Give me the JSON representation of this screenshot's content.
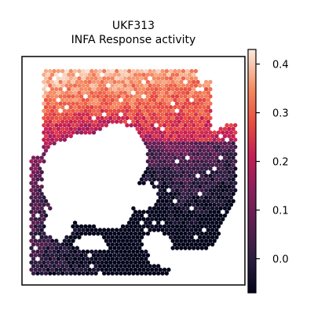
{
  "chart_data": {
    "type": "heatmap",
    "title": "UKF313",
    "subtitle": "INFA Response activity",
    "xlabel": "",
    "ylabel": "",
    "grid": false,
    "colormap": "rocket",
    "colorbar": {
      "min": -0.07,
      "max": 0.43,
      "ticks": [
        0.0,
        0.1,
        0.2,
        0.3,
        0.4
      ],
      "tick_labels": [
        "0.0",
        "0.1",
        "0.2",
        "0.3",
        "0.4"
      ]
    }
  }
}
